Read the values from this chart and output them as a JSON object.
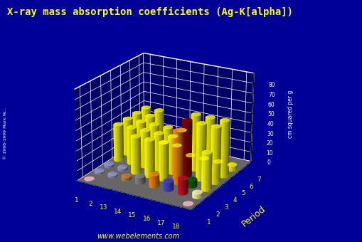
{
  "title": "X-ray mass absorption coefficients (Ag-K[alpha])",
  "title_color": "#FFFF00",
  "background_color": "#000099",
  "floor_color": "#555555",
  "ylabel": "Period",
  "zlabel": "cm squared per g",
  "x_labels": [
    "1",
    "2",
    "13",
    "14",
    "15",
    "16",
    "17",
    "18"
  ],
  "periods": [
    1,
    2,
    3,
    4,
    5,
    6,
    7
  ],
  "z_ticks": [
    0,
    10,
    20,
    30,
    40,
    50,
    60,
    70,
    80
  ],
  "zlim": [
    0,
    90
  ],
  "bar_data": [
    {
      "group": 1,
      "period": 1,
      "val": 0.5,
      "color": "#FFB6C1"
    },
    {
      "group": 1,
      "period": 2,
      "val": 2.0,
      "color": "#9999CC"
    },
    {
      "group": 1,
      "period": 3,
      "val": 2.5,
      "color": "#9999CC"
    },
    {
      "group": 1,
      "period": 4,
      "val": 37,
      "color": "#FFFF00"
    },
    {
      "group": 1,
      "period": 5,
      "val": 37,
      "color": "#FFFF00"
    },
    {
      "group": 1,
      "period": 6,
      "val": 37,
      "color": "#FFFF00"
    },
    {
      "group": 1,
      "period": 7,
      "val": 37,
      "color": "#FFFF00"
    },
    {
      "group": 2,
      "period": 2,
      "val": 2.0,
      "color": "#9999CC"
    },
    {
      "group": 2,
      "period": 3,
      "val": 2.5,
      "color": "#9999CC"
    },
    {
      "group": 2,
      "period": 4,
      "val": 37,
      "color": "#FFFF00"
    },
    {
      "group": 2,
      "period": 5,
      "val": 37,
      "color": "#FFFF00"
    },
    {
      "group": 2,
      "period": 6,
      "val": 37,
      "color": "#FFFF00"
    },
    {
      "group": 2,
      "period": 7,
      "val": 37,
      "color": "#FFFF00"
    },
    {
      "group": 13,
      "period": 2,
      "val": 3.5,
      "color": "#CD853F"
    },
    {
      "group": 13,
      "period": 3,
      "val": 37,
      "color": "#FFFF00"
    },
    {
      "group": 13,
      "period": 4,
      "val": 37,
      "color": "#FFFF00"
    },
    {
      "group": 13,
      "period": 5,
      "val": 37,
      "color": "#FFFF00"
    },
    {
      "group": 13,
      "period": 6,
      "val": 12,
      "color": "#FFFF00"
    },
    {
      "group": 14,
      "period": 2,
      "val": 6.7,
      "color": "#888888"
    },
    {
      "group": 14,
      "period": 3,
      "val": 37,
      "color": "#FFFF00"
    },
    {
      "group": 14,
      "period": 4,
      "val": 37,
      "color": "#FFFF00"
    },
    {
      "group": 14,
      "period": 5,
      "val": 37,
      "color": "#FFFF00"
    },
    {
      "group": 14,
      "period": 6,
      "val": 12,
      "color": "#FFFF00"
    },
    {
      "group": 15,
      "period": 2,
      "val": 12.0,
      "color": "#FF8C00"
    },
    {
      "group": 15,
      "period": 3,
      "val": 37,
      "color": "#FFFF00"
    },
    {
      "group": 15,
      "period": 4,
      "val": 37,
      "color": "#FFFF00"
    },
    {
      "group": 15,
      "period": 5,
      "val": 37,
      "color": "#FFFF00"
    },
    {
      "group": 15,
      "period": 6,
      "val": 5,
      "color": "#FFFF00"
    },
    {
      "group": 16,
      "period": 2,
      "val": 9.0,
      "color": "#4444DD"
    },
    {
      "group": 16,
      "period": 3,
      "val": 52,
      "color": "#FF8C00"
    },
    {
      "group": 16,
      "period": 4,
      "val": 56,
      "color": "#8B0000"
    },
    {
      "group": 16,
      "period": 5,
      "val": 56,
      "color": "#FFFF00"
    },
    {
      "group": 16,
      "period": 6,
      "val": 5,
      "color": "#FFFF00"
    },
    {
      "group": 17,
      "period": 2,
      "val": 15.0,
      "color": "#CC1122"
    },
    {
      "group": 17,
      "period": 3,
      "val": 7.0,
      "color": "#006400"
    },
    {
      "group": 17,
      "period": 4,
      "val": 56,
      "color": "#FFFF00"
    },
    {
      "group": 17,
      "period": 5,
      "val": 56,
      "color": "#FFFF00"
    },
    {
      "group": 17,
      "period": 6,
      "val": 5,
      "color": "#FFFF00"
    },
    {
      "group": 18,
      "period": 1,
      "val": 0.5,
      "color": "#FFB6C1"
    },
    {
      "group": 18,
      "period": 2,
      "val": 4.5,
      "color": "#FFFFAA"
    },
    {
      "group": 18,
      "period": 3,
      "val": 37,
      "color": "#FFFF00"
    },
    {
      "group": 18,
      "period": 4,
      "val": 56,
      "color": "#FFFF00"
    },
    {
      "group": 18,
      "period": 5,
      "val": 56,
      "color": "#FFFF00"
    },
    {
      "group": 18,
      "period": 6,
      "val": 5,
      "color": "#FFFF00"
    }
  ],
  "watermark": "www.webelements.com",
  "copyright": "© 1998-1999 Mark W..."
}
